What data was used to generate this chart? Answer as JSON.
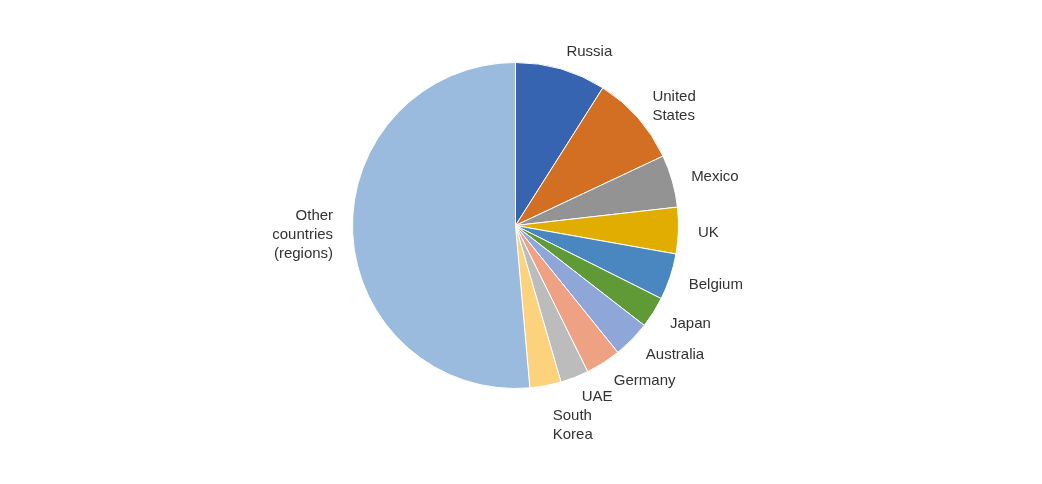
{
  "chart_data": {
    "type": "pie",
    "categories": [
      "Russia",
      "United States",
      "Mexico",
      "UK",
      "Belgium",
      "Japan",
      "Australia",
      "Germany",
      "UAE",
      "South Korea",
      "Other countries (regions)"
    ],
    "values": [
      9.0,
      9.0,
      5.2,
      4.6,
      4.6,
      3.1,
      3.7,
      3.5,
      2.8,
      3.1,
      51.4
    ],
    "colors": [
      "#3764b0",
      "#d26f22",
      "#939393",
      "#e1ae00",
      "#4a86c0",
      "#5f9a36",
      "#8fa6d8",
      "#efa283",
      "#bcbcbc",
      "#fdd27d",
      "#9abbde"
    ]
  }
}
